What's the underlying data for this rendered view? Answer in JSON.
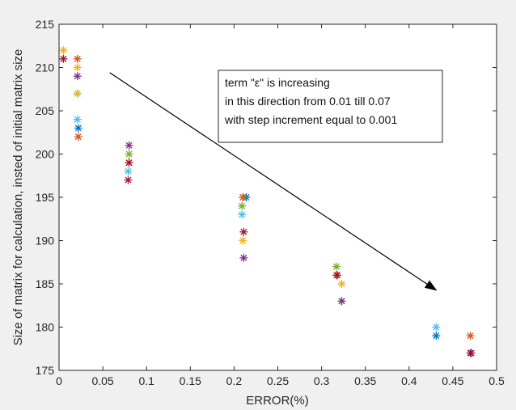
{
  "chart_data": {
    "type": "scatter",
    "title": "",
    "xlabel": "ERROR(%)",
    "ylabel": "Size of matrix for calculation, insted of initial matrix size",
    "xlim": [
      0,
      0.5
    ],
    "ylim": [
      175,
      215
    ],
    "xticks": [
      "0",
      "0.05",
      "0.1",
      "0.15",
      "0.2",
      "0.25",
      "0.3",
      "0.35",
      "0.4",
      "0.45",
      "0.5"
    ],
    "yticks": [
      "175",
      "180",
      "185",
      "190",
      "195",
      "200",
      "205",
      "210",
      "215"
    ],
    "grid": false,
    "marker": "asterisk",
    "points": [
      {
        "x": 0.005,
        "y": 212,
        "color": "#EDB120"
      },
      {
        "x": 0.005,
        "y": 211,
        "color": "#A2142F"
      },
      {
        "x": 0.021,
        "y": 211,
        "color": "#D95319"
      },
      {
        "x": 0.021,
        "y": 210,
        "color": "#EDB120"
      },
      {
        "x": 0.021,
        "y": 209,
        "color": "#7E2F8E"
      },
      {
        "x": 0.021,
        "y": 207,
        "color": "#77AC30"
      },
      {
        "x": 0.021,
        "y": 207,
        "color": "#EDB120"
      },
      {
        "x": 0.021,
        "y": 204,
        "color": "#4DBEEE"
      },
      {
        "x": 0.022,
        "y": 203,
        "color": "#0072BD"
      },
      {
        "x": 0.022,
        "y": 202,
        "color": "#D95319"
      },
      {
        "x": 0.08,
        "y": 201,
        "color": "#7E2F8E"
      },
      {
        "x": 0.08,
        "y": 200,
        "color": "#77AC30"
      },
      {
        "x": 0.08,
        "y": 199,
        "color": "#D95319"
      },
      {
        "x": 0.08,
        "y": 199,
        "color": "#A2142F"
      },
      {
        "x": 0.079,
        "y": 198,
        "color": "#4DBEEE"
      },
      {
        "x": 0.079,
        "y": 197,
        "color": "#A2142F"
      },
      {
        "x": 0.214,
        "y": 195,
        "color": "#0072BD"
      },
      {
        "x": 0.21,
        "y": 195,
        "color": "#EDB120"
      },
      {
        "x": 0.21,
        "y": 195,
        "color": "#D95319"
      },
      {
        "x": 0.209,
        "y": 194,
        "color": "#77AC30"
      },
      {
        "x": 0.209,
        "y": 193,
        "color": "#4DBEEE"
      },
      {
        "x": 0.211,
        "y": 191,
        "color": "#A2142F"
      },
      {
        "x": 0.21,
        "y": 190,
        "color": "#EDB120"
      },
      {
        "x": 0.211,
        "y": 188,
        "color": "#7E2F8E"
      },
      {
        "x": 0.317,
        "y": 187,
        "color": "#77AC30"
      },
      {
        "x": 0.317,
        "y": 186,
        "color": "#D95319"
      },
      {
        "x": 0.318,
        "y": 186,
        "color": "#A2142F"
      },
      {
        "x": 0.323,
        "y": 185,
        "color": "#EDB120"
      },
      {
        "x": 0.323,
        "y": 183,
        "color": "#77AC30"
      },
      {
        "x": 0.323,
        "y": 183,
        "color": "#7E2F8E"
      },
      {
        "x": 0.431,
        "y": 180,
        "color": "#4DBEEE"
      },
      {
        "x": 0.431,
        "y": 179,
        "color": "#0072BD"
      },
      {
        "x": 0.47,
        "y": 179,
        "color": "#D95319"
      },
      {
        "x": 0.47,
        "y": 177,
        "color": "#7E2F8E"
      },
      {
        "x": 0.471,
        "y": 177,
        "color": "#A2142F"
      }
    ],
    "annotation": {
      "lines": [
        "term \"ε\" is increasing",
        "in this direction from 0.01 till 0.07",
        "with step increment equal to 0.001"
      ]
    },
    "arrow": {
      "from": [
        0.058,
        209.4
      ],
      "to": [
        0.432,
        184.2
      ]
    }
  }
}
